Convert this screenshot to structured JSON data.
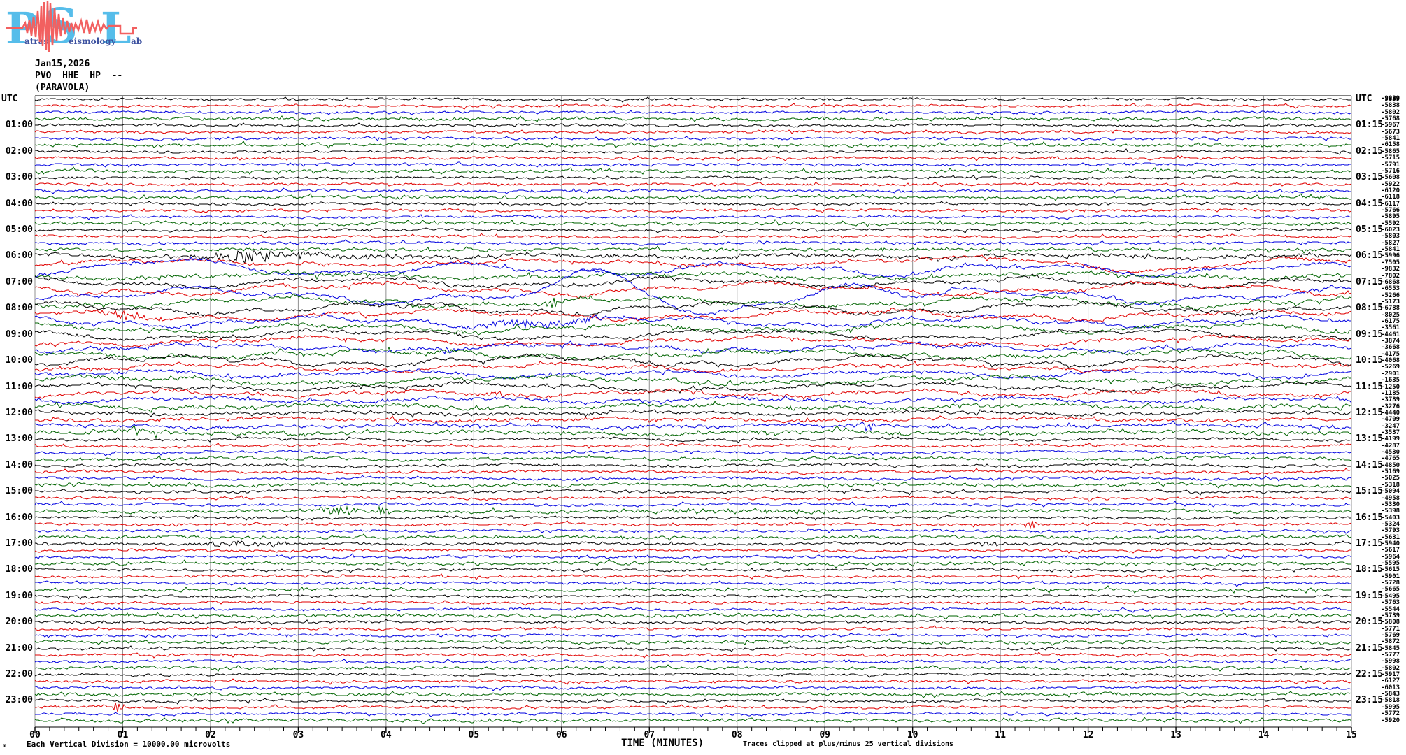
{
  "logo": {
    "letters": [
      "P",
      "S",
      "L"
    ],
    "words": [
      "atras",
      "eismology",
      "ab"
    ],
    "letter_color": "#56bdea",
    "word_color": "#3d52a0",
    "wave_color": "#f26060"
  },
  "header": {
    "date": "Jan15,2026",
    "station": "PVO  HHE  HP  --",
    "location": "(PARAVOLA)"
  },
  "footer": {
    "left_mark": "m",
    "division_note": "Each Vertical Division = 10000.00 microvolts",
    "axis_title": "TIME (MINUTES)",
    "clip_note": "Traces clipped at plus/minus 25 vertical divisions"
  },
  "chart_data": {
    "type": "line",
    "subtype": "helicorder-seismogram",
    "title": "PVO HHE HP -- (PARAVOLA) Jan15,2026",
    "xlabel": "TIME (MINUTES)",
    "x_range": [
      0,
      15
    ],
    "x_tick_labels": [
      "00",
      "01",
      "02",
      "03",
      "04",
      "05",
      "06",
      "07",
      "08",
      "09",
      "10",
      "11",
      "12",
      "13",
      "14",
      "15"
    ],
    "minor_ticks_per_minute": 5,
    "hours": 24,
    "rows_per_hour": 4,
    "grid": "vertical-minute-lines",
    "trace_colors": [
      "#000000",
      "#e00000",
      "#0000e0",
      "#006400"
    ],
    "grid_color": "#909090",
    "left_labels": [
      "UTC",
      "01:00",
      "02:00",
      "03:00",
      "04:00",
      "05:00",
      "06:00",
      "07:00",
      "08:00",
      "09:00",
      "10:00",
      "11:00",
      "12:00",
      "13:00",
      "14:00",
      "15:00",
      "16:00",
      "17:00",
      "18:00",
      "19:00",
      "20:00",
      "21:00",
      "22:00",
      "23:00"
    ],
    "right_labels": [
      "UTC",
      "01:15",
      "02:15",
      "03:15",
      "04:15",
      "05:15",
      "06:15",
      "07:15",
      "08:15",
      "09:15",
      "10:15",
      "11:15",
      "12:15",
      "13:15",
      "14:15",
      "15:15",
      "16:15",
      "17:15",
      "18:15",
      "19:15",
      "20:15",
      "21:15",
      "22:15",
      "23:15"
    ],
    "top_right_overlay_value": "-9039",
    "right_values": [
      "-5839",
      "-5838",
      "-5802",
      "-5768",
      "-5967",
      "-5673",
      "-5841",
      "-6158",
      "-5865",
      "-5715",
      "-5791",
      "-5716",
      "-5608",
      "-5922",
      "-6120",
      "-6118",
      "-6117",
      "-5766",
      "-5895",
      "-5592",
      "-6023",
      "-5803",
      "-5827",
      "-5841",
      "-5996",
      "-7505",
      "-9832",
      "-7802",
      "-6868",
      "-6553",
      "-5266",
      "-5173",
      "-6788",
      "-8025",
      "-6175",
      "-3561",
      "-4461",
      "-3874",
      "-3668",
      "-4175",
      "-4068",
      "-5269",
      "-2901",
      "-1635",
      "-1250",
      "-1185",
      "-3789",
      "-3276",
      "-4440",
      "-4709",
      "-3247",
      "-3537",
      "-4199",
      "-4287",
      "-4530",
      "-4765",
      "-4850",
      "-5169",
      "-5025",
      "-5318",
      "-5094",
      "-4958",
      "-5330",
      "-5398",
      "-5403",
      "-5324",
      "-5793",
      "-5631",
      "-5940",
      "-5617",
      "-5964",
      "-5595",
      "-5615",
      "-5901",
      "-5728",
      "-5665",
      "-5495",
      "-5763",
      "-5544",
      "-5739",
      "-5808",
      "-5771",
      "-5769",
      "-5872",
      "-5845",
      "-5777",
      "-5998",
      "-5802",
      "-5917",
      "-6127",
      "-6013",
      "-5843",
      "-5818",
      "-5995",
      "-5772",
      "-5920"
    ],
    "gen": {
      "seed": 1234,
      "noise_base": 1.3,
      "green_bonus": 0.35,
      "band_start": 24,
      "band_end": 51,
      "band_bonus": 0.45,
      "wander": [
        0.8,
        0.8,
        0.8,
        0.8,
        0.8,
        0.8,
        0.8,
        0.8,
        0.8,
        0.8,
        0.8,
        0.8,
        0.8,
        0.8,
        0.8,
        0.8,
        1.0,
        1.0,
        1.0,
        1.0,
        1.2,
        1.2,
        1.2,
        1.2,
        3,
        5,
        10,
        5,
        8,
        10,
        12,
        8,
        9,
        8,
        8,
        7,
        8,
        7,
        6,
        7,
        8,
        6,
        6,
        6,
        6,
        5,
        4,
        4,
        2.5,
        2.5,
        2.5,
        2.5,
        2,
        2,
        2,
        2,
        1.8,
        1.8,
        1.8,
        1.8,
        1.5,
        1.5,
        1.5,
        1.5,
        1.0,
        1.0,
        1.0,
        1.0,
        1.0,
        1.0,
        1.0,
        1.0,
        1.0,
        1.0,
        1.0,
        1.0,
        1.0,
        1.0,
        1.0,
        1.0,
        1.0,
        1.0,
        1.0,
        1.0,
        1.0,
        1.0,
        1.0,
        1.0,
        1.0,
        1.0,
        1.0,
        1.0,
        1.0,
        1.0,
        1.0,
        1.0
      ],
      "events": [
        {
          "row": 24,
          "type": "quake",
          "start": 1.55,
          "peak": 2.3,
          "end": 4.6,
          "amp": 9,
          "coda": 1.2
        },
        {
          "row": 25,
          "type": "sine",
          "start": 9.5,
          "end": 15,
          "amp": 10,
          "wl": 4.5
        },
        {
          "row": 26,
          "type": "sine",
          "start": 0,
          "end": 2.5,
          "amp": 9,
          "wl": 5
        },
        {
          "row": 30,
          "type": "sine",
          "start": 5.6,
          "end": 8.4,
          "amp": 36,
          "wl": 2.8
        },
        {
          "row": 30,
          "type": "sine",
          "start": 8.6,
          "end": 10.6,
          "amp": 20,
          "wl": 2.6
        },
        {
          "row": 31,
          "type": "spike",
          "at": 5.9,
          "amp": 8
        },
        {
          "row": 33,
          "type": "burst",
          "start": 0.55,
          "end": 1.6,
          "amp": 6
        },
        {
          "row": 34,
          "type": "burst",
          "start": 4.7,
          "end": 6.6,
          "amp": 5
        },
        {
          "row": 38,
          "type": "burst",
          "start": 4.55,
          "end": 4.85,
          "amp": 5
        },
        {
          "row": 45,
          "type": "burst",
          "start": 5.05,
          "end": 5.45,
          "amp": 5
        },
        {
          "row": 50,
          "type": "burst",
          "start": 9.3,
          "end": 9.6,
          "amp": 8
        },
        {
          "row": 51,
          "type": "burst",
          "start": 0.85,
          "end": 1.5,
          "amp": 5
        },
        {
          "row": 63,
          "type": "burst",
          "start": 3.2,
          "end": 3.75,
          "amp": 8
        },
        {
          "row": 63,
          "type": "spike",
          "at": 3.95,
          "amp": 6
        },
        {
          "row": 63,
          "type": "ripple",
          "start": 6.6,
          "end": 9.2,
          "amp": 3
        },
        {
          "row": 65,
          "type": "spike",
          "at": 11.35,
          "amp": 6
        },
        {
          "row": 68,
          "type": "burst",
          "start": 1.7,
          "end": 3.0,
          "amp": 4
        },
        {
          "row": 68,
          "type": "ripple",
          "start": 10.6,
          "end": 11.4,
          "amp": 2.5
        },
        {
          "row": 93,
          "type": "spike",
          "at": 0.95,
          "amp": 7
        }
      ]
    }
  }
}
